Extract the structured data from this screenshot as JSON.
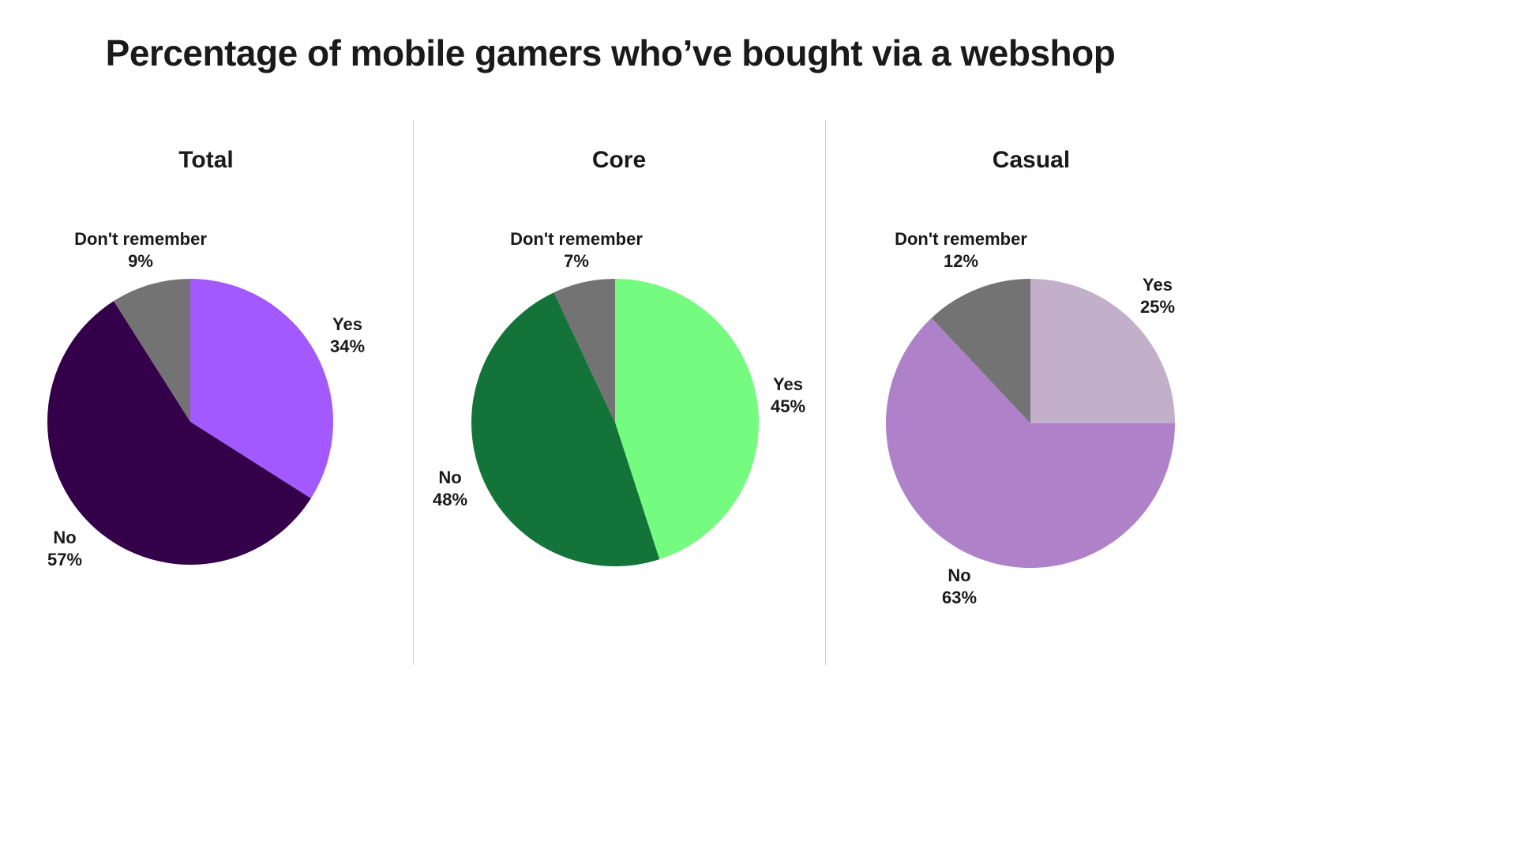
{
  "title": "Percentage of mobile gamers who’ve bought via a webshop",
  "chart_data": [
    {
      "type": "pie",
      "title": "Total",
      "categories": [
        "Yes",
        "No",
        "Don't remember"
      ],
      "values": [
        34,
        57,
        9
      ],
      "labels": [
        "34%",
        "57%",
        "9%"
      ],
      "colors": [
        "#a259ff",
        "#35004a",
        "#737373"
      ],
      "start_angle": "top, clockwise"
    },
    {
      "type": "pie",
      "title": "Core",
      "categories": [
        "Yes",
        "No",
        "Don't remember"
      ],
      "values": [
        45,
        48,
        7
      ],
      "labels": [
        "45%",
        "48%",
        "7%"
      ],
      "colors": [
        "#75fb7f",
        "#147339",
        "#737373"
      ],
      "start_angle": "top, clockwise"
    },
    {
      "type": "pie",
      "title": "Casual",
      "categories": [
        "Yes",
        "No",
        "Don't remember"
      ],
      "values": [
        25,
        63,
        12
      ],
      "labels": [
        "25%",
        "63%",
        "12%"
      ],
      "colors": [
        "#c2b0cb",
        "#af81c8",
        "#737373"
      ],
      "start_angle": "top, clockwise"
    }
  ]
}
